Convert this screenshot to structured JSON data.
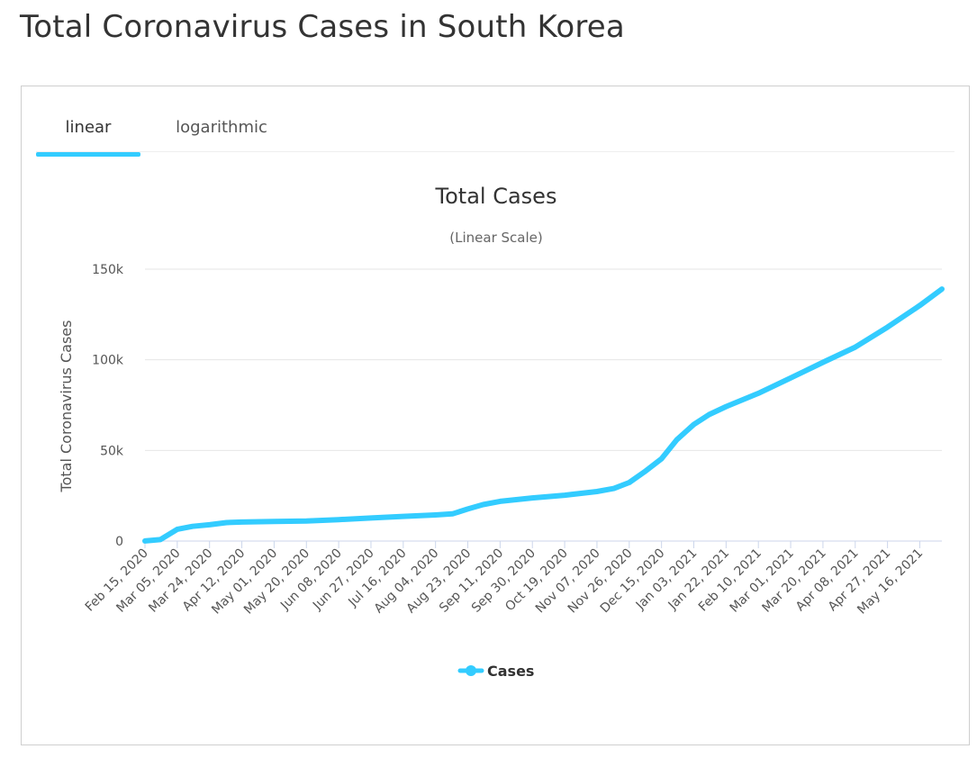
{
  "page": {
    "title": "Total Coronavirus Cases in South Korea"
  },
  "tabs": [
    {
      "label": "linear",
      "active": true
    },
    {
      "label": "logarithmic",
      "active": false
    }
  ],
  "colors": {
    "series": "#33ccff",
    "grid": "#e6e6e6",
    "axis": "#ccd6eb"
  },
  "chart_data": {
    "type": "line",
    "title": "Total Cases",
    "subtitle": "(Linear Scale)",
    "xlabel": "",
    "ylabel": "Total Coronavirus Cases",
    "ylim": [
      0,
      150000
    ],
    "yticks": [
      0,
      50000,
      100000,
      150000
    ],
    "ytick_labels": [
      "0",
      "50k",
      "100k",
      "150k"
    ],
    "grid": true,
    "legend": "bottom-center",
    "x_tick_labels": [
      "Feb 15, 2020",
      "Mar 05, 2020",
      "Mar 24, 2020",
      "Apr 12, 2020",
      "May 01, 2020",
      "May 20, 2020",
      "Jun 08, 2020",
      "Jun 27, 2020",
      "Jul 16, 2020",
      "Aug 04, 2020",
      "Aug 23, 2020",
      "Sep 11, 2020",
      "Sep 30, 2020",
      "Oct 19, 2020",
      "Nov 07, 2020",
      "Nov 26, 2020",
      "Dec 15, 2020",
      "Jan 03, 2021",
      "Jan 22, 2021",
      "Feb 10, 2021",
      "Mar 01, 2021",
      "Mar 20, 2021",
      "Apr 08, 2021",
      "Apr 27, 2021",
      "May 16, 2021"
    ],
    "series": [
      {
        "name": "Cases",
        "x": [
          "Feb 15, 2020",
          "Feb 24, 2020",
          "Mar 05, 2020",
          "Mar 14, 2020",
          "Mar 24, 2020",
          "Apr 03, 2020",
          "Apr 12, 2020",
          "May 01, 2020",
          "May 20, 2020",
          "Jun 08, 2020",
          "Jun 27, 2020",
          "Jul 16, 2020",
          "Aug 04, 2020",
          "Aug 14, 2020",
          "Aug 23, 2020",
          "Sep 01, 2020",
          "Sep 11, 2020",
          "Sep 30, 2020",
          "Oct 19, 2020",
          "Nov 07, 2020",
          "Nov 17, 2020",
          "Nov 26, 2020",
          "Dec 05, 2020",
          "Dec 15, 2020",
          "Dec 24, 2020",
          "Jan 03, 2021",
          "Jan 12, 2021",
          "Jan 22, 2021",
          "Feb 10, 2021",
          "Mar 01, 2021",
          "Mar 20, 2021",
          "Apr 08, 2021",
          "Apr 27, 2021",
          "May 16, 2021",
          "May 29, 2021"
        ],
        "values": [
          29,
          800,
          6500,
          8100,
          9000,
          10200,
          10500,
          10800,
          11100,
          11800,
          12700,
          13600,
          14400,
          15000,
          17700,
          20100,
          21900,
          23800,
          25300,
          27300,
          29000,
          32300,
          38200,
          45400,
          55900,
          64300,
          69800,
          74200,
          81500,
          90000,
          98600,
          107000,
          118000,
          130000,
          139000
        ]
      }
    ]
  }
}
